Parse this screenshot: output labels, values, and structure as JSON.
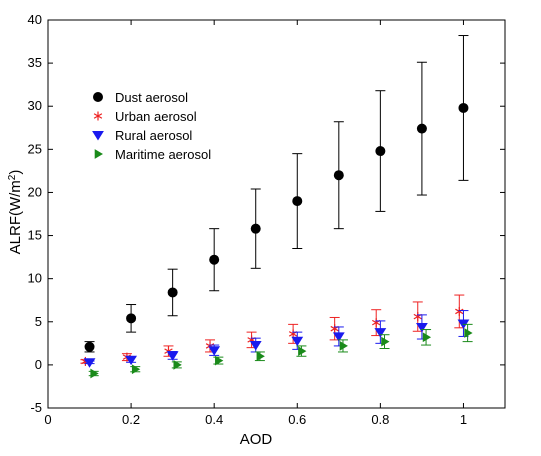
{
  "chart_data": {
    "type": "scatter",
    "xlabel": "AOD",
    "ylabel_main": "ALRF(W/m",
    "ylabel_sup": "2",
    "ylabel_close": ")",
    "xlim": [
      0,
      1.1
    ],
    "ylim": [
      -5,
      40
    ],
    "xticks": [
      0,
      0.2,
      0.4,
      0.6,
      0.8,
      1
    ],
    "xtick_labels": [
      "0",
      "0.2",
      "0.4",
      "0.6",
      "0.8",
      "1"
    ],
    "yticks": [
      -5,
      0,
      5,
      10,
      15,
      20,
      25,
      30,
      35,
      40
    ],
    "ytick_labels": [
      "-5",
      "0",
      "5",
      "10",
      "15",
      "20",
      "25",
      "30",
      "35",
      "40"
    ],
    "grid": false,
    "legend_position": "top-left",
    "series": [
      {
        "name": "Dust aerosol",
        "marker": "circle",
        "color": "#000000",
        "x": [
          0.1,
          0.2,
          0.3,
          0.4,
          0.5,
          0.6,
          0.7,
          0.8,
          0.9,
          1.0
        ],
        "y": [
          2.1,
          5.4,
          8.4,
          12.2,
          15.8,
          19.0,
          22.0,
          24.8,
          27.4,
          29.8
        ],
        "err": [
          0.6,
          1.6,
          2.7,
          3.6,
          4.6,
          5.5,
          6.2,
          7.0,
          7.7,
          8.4
        ]
      },
      {
        "name": "Urban aerosol",
        "marker": "asterisk",
        "color": "#ee2222",
        "x": [
          0.09,
          0.19,
          0.29,
          0.39,
          0.49,
          0.59,
          0.69,
          0.79,
          0.89,
          0.99
        ],
        "y": [
          0.4,
          0.9,
          1.6,
          2.2,
          2.9,
          3.6,
          4.2,
          4.9,
          5.6,
          6.2
        ],
        "err": [
          0.2,
          0.4,
          0.6,
          0.7,
          0.9,
          1.1,
          1.3,
          1.5,
          1.7,
          1.9
        ]
      },
      {
        "name": "Rural aerosol",
        "marker": "triangle-down",
        "color": "#1a1aee",
        "x": [
          0.1,
          0.2,
          0.3,
          0.4,
          0.5,
          0.6,
          0.7,
          0.8,
          0.9,
          1.0
        ],
        "y": [
          0.3,
          0.6,
          1.1,
          1.7,
          2.3,
          2.8,
          3.3,
          3.8,
          4.4,
          4.8
        ],
        "err": [
          0.15,
          0.3,
          0.45,
          0.6,
          0.8,
          1.0,
          1.1,
          1.3,
          1.4,
          1.5
        ]
      },
      {
        "name": "Maritime aerosol",
        "marker": "triangle-right",
        "color": "#1a8a1a",
        "x": [
          0.11,
          0.21,
          0.31,
          0.41,
          0.51,
          0.61,
          0.71,
          0.81,
          0.91,
          1.01
        ],
        "y": [
          -1.0,
          -0.5,
          0.0,
          0.5,
          1.0,
          1.6,
          2.2,
          2.7,
          3.2,
          3.7
        ],
        "err": [
          0.25,
          0.3,
          0.35,
          0.4,
          0.5,
          0.6,
          0.7,
          0.8,
          0.9,
          1.0
        ]
      }
    ]
  }
}
